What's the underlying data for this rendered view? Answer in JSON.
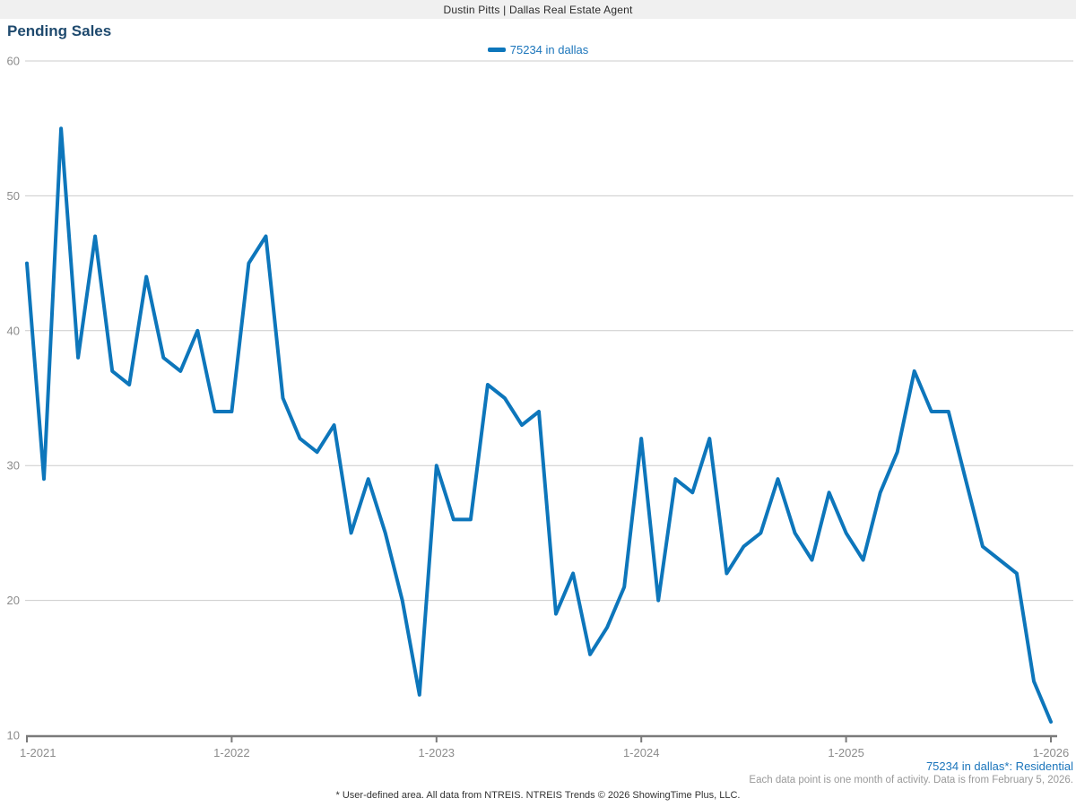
{
  "header": {
    "title": "Dustin Pitts | Dallas Real Estate Agent"
  },
  "chart": {
    "title": "Pending Sales",
    "legend": {
      "label": "75234 in dallas"
    }
  },
  "chart_data": {
    "type": "line",
    "title": "Pending Sales",
    "x_monthly_start": "1-2021",
    "x_monthly_end": "1-2026",
    "x_tick_labels": [
      "1-2021",
      "1-2022",
      "1-2023",
      "1-2024",
      "1-2025",
      "1-2026"
    ],
    "y_ticks": [
      10,
      20,
      30,
      40,
      50,
      60
    ],
    "ylim": [
      10,
      60
    ],
    "grid": true,
    "legend_position": "top-center",
    "series": [
      {
        "name": "75234 in dallas",
        "values": [
          45,
          29,
          55,
          38,
          47,
          37,
          36,
          44,
          38,
          37,
          40,
          34,
          34,
          45,
          47,
          35,
          32,
          31,
          33,
          25,
          29,
          25,
          20,
          13,
          30,
          26,
          26,
          36,
          35,
          33,
          34,
          19,
          22,
          16,
          18,
          21,
          32,
          20,
          29,
          28,
          32,
          22,
          24,
          25,
          29,
          25,
          23,
          28,
          25,
          23,
          28,
          31,
          37,
          34,
          34,
          29,
          24,
          23,
          22,
          14,
          11
        ]
      }
    ],
    "colors": {
      "line": "#0d76bb",
      "grid": "#cccccc",
      "axis": "#7a7a7a",
      "tick_label": "#8c8c8c",
      "title": "#1f4a6e",
      "legend_text": "#1b75bb"
    }
  },
  "footnotes": {
    "series_note": "75234 in dallas*: Residential",
    "data_note": "Each data point is one month of activity. Data is from February 5, 2026.",
    "disclaimer": "* User-defined area. All data from NTREIS. NTREIS Trends © 2026 ShowingTime Plus, LLC."
  }
}
